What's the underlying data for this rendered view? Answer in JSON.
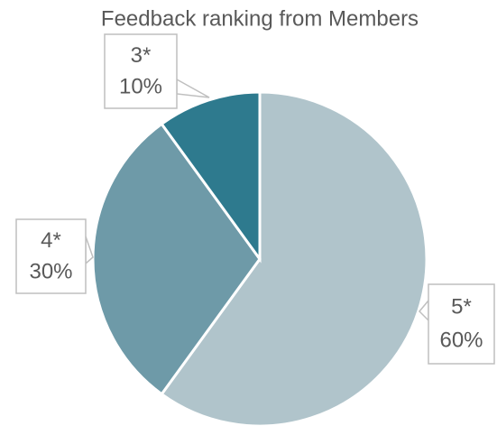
{
  "chart_data": {
    "type": "pie",
    "title": "Feedback ranking from Members",
    "categories": [
      "5*",
      "4*",
      "3*"
    ],
    "values": [
      60,
      30,
      10
    ],
    "value_labels": [
      "60%",
      "30%",
      "10%"
    ],
    "colors": [
      "#b0c4cb",
      "#6e9aa8",
      "#2e7a8e"
    ]
  }
}
